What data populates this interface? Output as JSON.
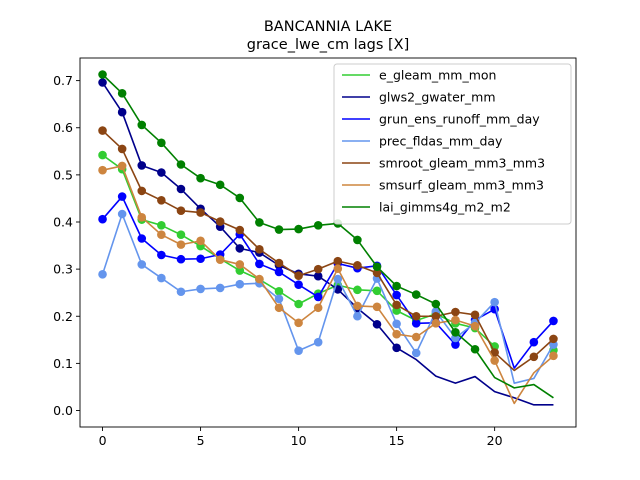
{
  "chart_data": {
    "type": "line",
    "title": "BANCANNIA LAKE",
    "subtitle": "grace_lwe_cm lags [X]",
    "xlabel": "",
    "ylabel": "",
    "xlim": [
      -1.15,
      24.15
    ],
    "ylim": [
      -0.035,
      0.748
    ],
    "xticks": [
      0,
      5,
      10,
      15,
      20
    ],
    "yticks": [
      0.0,
      0.1,
      0.2,
      0.3,
      0.4,
      0.5,
      0.6,
      0.7
    ],
    "grid": false,
    "legend_position": "top-right",
    "x": [
      0,
      1,
      2,
      3,
      4,
      5,
      6,
      7,
      8,
      9,
      10,
      11,
      12,
      13,
      14,
      15,
      16,
      17,
      18,
      19,
      20,
      21,
      22,
      23
    ],
    "series": [
      {
        "name": "e_gleam_mm_mon",
        "color": "#32cd32",
        "values": [
          0.542,
          0.512,
          0.405,
          0.393,
          0.373,
          0.349,
          0.322,
          0.297,
          0.278,
          0.253,
          0.226,
          0.248,
          0.266,
          0.256,
          0.254,
          0.212,
          0.191,
          0.205,
          0.185,
          0.175,
          0.136,
          null,
          null,
          0.128
        ],
        "markers": [
          0,
          1,
          2,
          3,
          4,
          5,
          6,
          7,
          8,
          9,
          10,
          11,
          12,
          13,
          14,
          15,
          16,
          17,
          18,
          19,
          20,
          23
        ]
      },
      {
        "name": "glws2_gwater_mm",
        "color": "#00008b",
        "values": [
          0.696,
          0.633,
          0.52,
          0.505,
          0.47,
          0.428,
          0.39,
          0.344,
          0.335,
          0.308,
          0.29,
          0.285,
          0.257,
          0.217,
          0.183,
          0.133,
          0.108,
          0.073,
          0.058,
          0.072,
          0.04,
          0.027,
          0.012,
          0.012
        ],
        "markers": [
          0,
          1,
          2,
          3,
          4,
          5,
          6,
          7,
          8,
          9,
          10,
          11,
          12,
          13,
          14,
          15
        ]
      },
      {
        "name": "grun_ens_runoff_mm_day",
        "color": "#0000ff",
        "values": [
          0.406,
          0.454,
          0.365,
          0.33,
          0.321,
          0.322,
          0.331,
          0.374,
          0.311,
          0.294,
          0.267,
          0.241,
          0.312,
          0.302,
          0.307,
          0.245,
          0.185,
          0.186,
          0.14,
          0.192,
          0.215,
          0.09,
          0.145,
          0.19
        ],
        "markers": [
          0,
          1,
          2,
          3,
          4,
          5,
          6,
          7,
          8,
          9,
          10,
          11,
          12,
          13,
          14,
          15,
          16,
          17,
          18,
          19,
          20,
          22,
          23
        ]
      },
      {
        "name": "prec_fldas_mm_day",
        "color": "#6495ed",
        "values": [
          0.289,
          0.417,
          0.31,
          0.281,
          0.252,
          0.258,
          0.26,
          0.268,
          0.27,
          0.237,
          0.127,
          0.145,
          0.279,
          0.2,
          0.28,
          0.184,
          0.122,
          0.21,
          0.154,
          0.186,
          0.23,
          0.058,
          0.068,
          0.14
        ],
        "markers": [
          0,
          1,
          2,
          3,
          4,
          5,
          6,
          7,
          8,
          9,
          10,
          11,
          12,
          13,
          14,
          15,
          16,
          17,
          18,
          19,
          20,
          23
        ]
      },
      {
        "name": "smroot_gleam_mm3_mm3",
        "color": "#8b4513",
        "values": [
          0.594,
          0.555,
          0.466,
          0.446,
          0.424,
          0.42,
          0.401,
          0.383,
          0.342,
          0.313,
          0.286,
          0.3,
          0.317,
          0.308,
          0.292,
          0.224,
          0.2,
          0.2,
          0.209,
          0.203,
          0.123,
          0.085,
          0.114,
          0.152
        ],
        "markers": [
          0,
          1,
          2,
          3,
          4,
          5,
          6,
          7,
          8,
          9,
          10,
          11,
          12,
          13,
          14,
          15,
          16,
          17,
          18,
          19,
          20,
          22,
          23
        ]
      },
      {
        "name": "smsurf_gleam_mm3_mm3",
        "color": "#cd853f",
        "values": [
          0.51,
          0.519,
          0.41,
          0.373,
          0.352,
          0.36,
          0.32,
          0.31,
          0.279,
          0.218,
          0.186,
          0.218,
          0.301,
          0.222,
          0.22,
          0.162,
          0.156,
          0.185,
          0.192,
          0.179,
          0.106,
          0.015,
          0.08,
          0.116
        ],
        "markers": [
          0,
          1,
          2,
          3,
          4,
          5,
          6,
          7,
          8,
          9,
          10,
          11,
          12,
          13,
          14,
          15,
          16,
          17,
          18,
          19,
          20,
          23
        ]
      },
      {
        "name": "lai_gimms4g_m2_m2",
        "color": "#008000",
        "values": [
          0.713,
          0.673,
          0.606,
          0.568,
          0.522,
          0.493,
          0.479,
          0.451,
          0.399,
          0.384,
          0.385,
          0.393,
          0.397,
          0.362,
          0.305,
          0.264,
          0.246,
          0.226,
          0.166,
          0.13,
          0.07,
          0.048,
          0.055,
          0.027
        ],
        "markers": [
          0,
          1,
          2,
          3,
          4,
          5,
          6,
          7,
          8,
          9,
          10,
          11,
          12,
          13,
          14,
          15,
          16,
          17,
          18,
          19
        ]
      }
    ]
  }
}
